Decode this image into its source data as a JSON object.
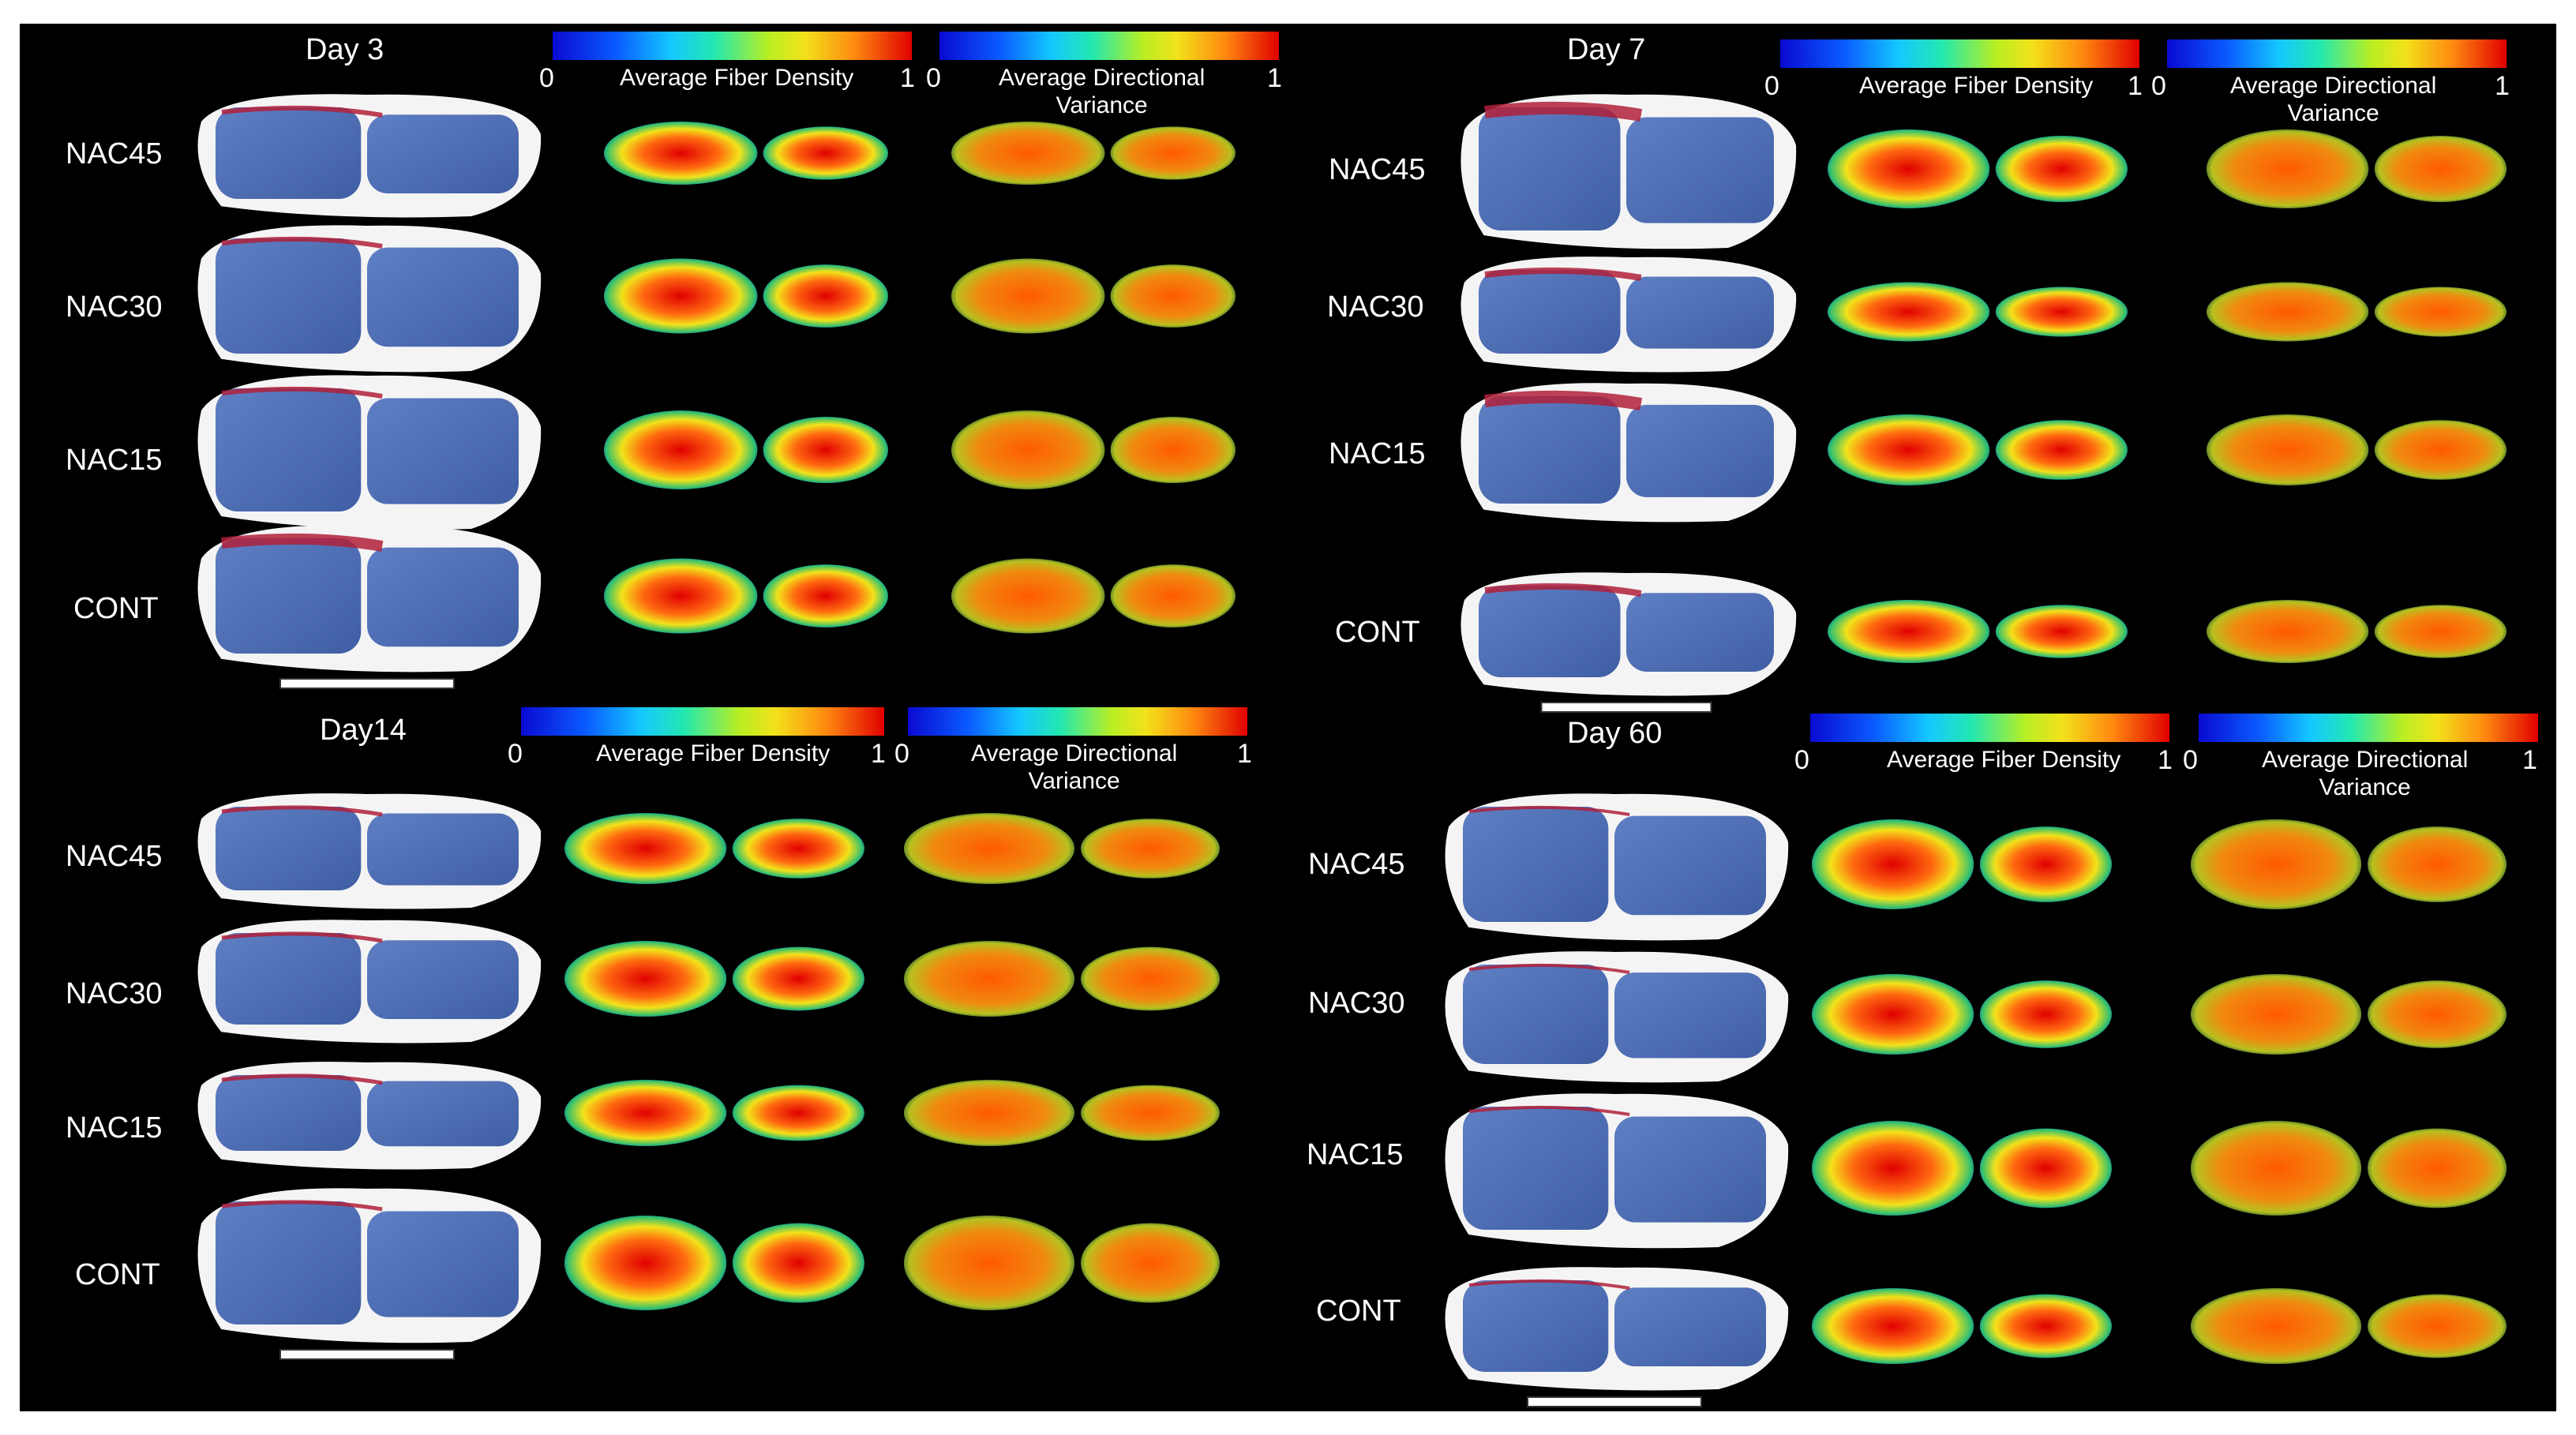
{
  "figure": {
    "panels": [
      {
        "id": "day3",
        "title": "Day 3",
        "rows": [
          "NAC45",
          "NAC30",
          "NAC15",
          "CONT"
        ],
        "colorbars": [
          {
            "label": "Average Fiber Density",
            "min": "0",
            "max": "1"
          },
          {
            "label": "Average Directional\nVariance",
            "min": "0",
            "max": "1"
          }
        ]
      },
      {
        "id": "day7",
        "title": "Day 7",
        "rows": [
          "NAC45",
          "NAC30",
          "NAC15",
          "CONT"
        ],
        "colorbars": [
          {
            "label": "Average Fiber Density",
            "min": "0",
            "max": "1"
          },
          {
            "label": "Average Directional\nVariance",
            "min": "0",
            "max": "1"
          }
        ]
      },
      {
        "id": "day14",
        "title": "Day14",
        "rows": [
          "NAC45",
          "NAC30",
          "NAC15",
          "CONT"
        ],
        "colorbars": [
          {
            "label": "Average Fiber Density",
            "min": "0",
            "max": "1"
          },
          {
            "label": "Average Directional\nVariance",
            "min": "0",
            "max": "1"
          }
        ]
      },
      {
        "id": "day60",
        "title": "Day 60",
        "rows": [
          "NAC45",
          "NAC30",
          "NAC15",
          "CONT"
        ],
        "colorbars": [
          {
            "label": "Average Fiber Density",
            "min": "0",
            "max": "1"
          },
          {
            "label": "Average Directional\nVariance",
            "min": "0",
            "max": "1"
          }
        ]
      }
    ],
    "colors": {
      "background": "#000000",
      "tissue_blue": "#4a6cb0",
      "tissue_red": "#b0203a",
      "mount": "#f4f4f4",
      "heat_low": "#0a5cff",
      "heat_mid": "#f2e21a",
      "heat_high": "#e00000"
    }
  }
}
